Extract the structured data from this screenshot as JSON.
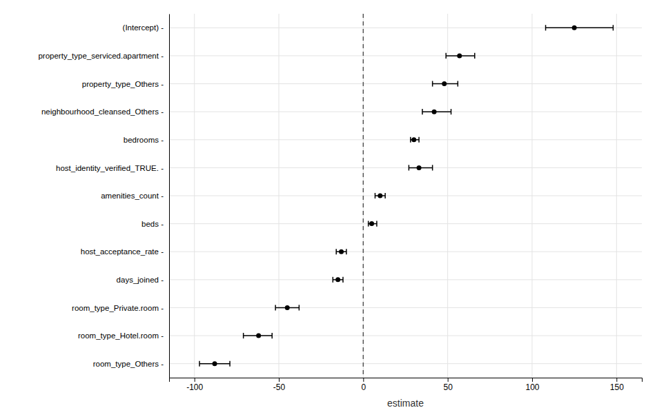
{
  "chart_data": {
    "type": "dot",
    "orientation": "horizontal",
    "categories": [
      "(Intercept) -",
      "property_type_serviced.apartment -",
      "property_type_Others -",
      "neighbourhood_cleansed_Others -",
      "bedrooms -",
      "host_identity_verified_TRUE. -",
      "amenities_count -",
      "beds -",
      "host_acceptance_rate -",
      "days_joined -",
      "room_type_Private.room -",
      "room_type_Hotel.room -",
      "room_type_Others -"
    ],
    "values": [
      125,
      57,
      48,
      42,
      30,
      33,
      10,
      5,
      -13,
      -15,
      -45,
      -62,
      -88
    ],
    "ci_low": [
      108,
      49,
      41,
      35,
      28,
      27,
      7,
      3,
      -16,
      -18,
      -52,
      -71,
      -97
    ],
    "ci_high": [
      148,
      66,
      56,
      52,
      33,
      41,
      13,
      8,
      -10,
      -12,
      -38,
      -54,
      -79
    ],
    "xlabel": "estimate",
    "xlim": [
      -115,
      165
    ],
    "xticks": [
      -100,
      -50,
      0,
      50,
      100,
      150
    ],
    "vline": 0,
    "grid": true,
    "color": "#000000"
  }
}
